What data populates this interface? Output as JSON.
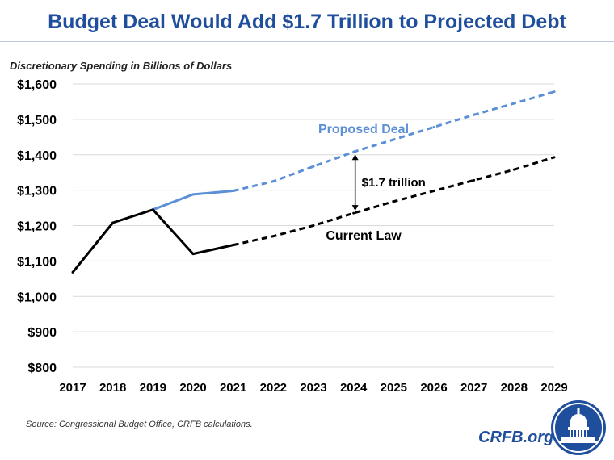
{
  "title": "Budget Deal Would Add $1.7 Trillion to Projected Debt",
  "source": "Source: Congressional Budget Office, CRFB calculations.",
  "brand": "CRFB.org",
  "logo_icon": "capitol-dome-icon",
  "colors": {
    "title": "#1f4e9c",
    "proposed": "#5b8fd6",
    "current": "#000000",
    "grid": "#d9d9d9"
  },
  "chart_data": {
    "type": "line",
    "ylabel": "Discretionary  Spending  in Billions of Dollars",
    "xlabel": "",
    "x": [
      "2017",
      "2018",
      "2019",
      "2020",
      "2021",
      "2022",
      "2023",
      "2024",
      "2025",
      "2026",
      "2027",
      "2028",
      "2029"
    ],
    "ylim": [
      800,
      1600
    ],
    "yticks": [
      800,
      900,
      1000,
      1100,
      1200,
      1300,
      1400,
      1500,
      1600
    ],
    "ytick_labels": [
      "$800",
      "$900",
      "$1,000",
      "$1,100",
      "$1,200",
      "$1,300",
      "$1,400",
      "$1,500",
      "$1,600"
    ],
    "grid": true,
    "legend": "none",
    "series": [
      {
        "name": "Proposed Deal",
        "color": "#5b8fd6",
        "values": [
          null,
          null,
          1245,
          1288,
          1298,
          1325,
          1367,
          1408,
          1443,
          1478,
          1513,
          1545,
          1578
        ],
        "projection_from": "2021"
      },
      {
        "name": "Current Law",
        "color": "#000000",
        "values": [
          1068,
          1208,
          1245,
          1120,
          1145,
          1170,
          1200,
          1235,
          1268,
          1298,
          1328,
          1358,
          1393
        ],
        "projection_from": "2021"
      }
    ],
    "annotations": [
      {
        "text": "$1.7 trillion",
        "x": "2024",
        "from": 1235,
        "to": 1408
      }
    ]
  }
}
